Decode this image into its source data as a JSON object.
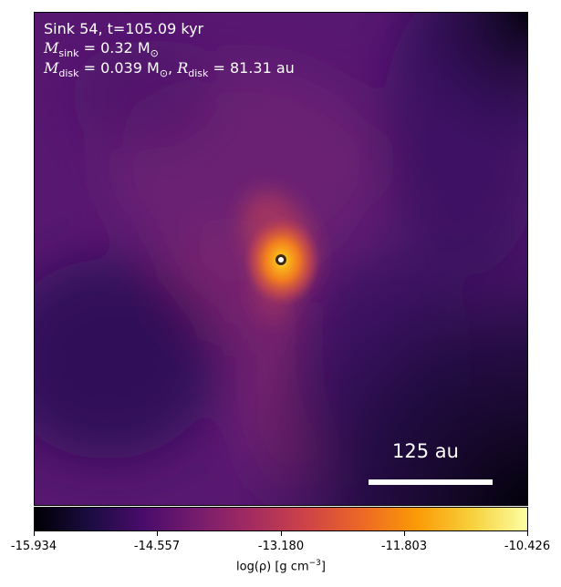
{
  "annotation": {
    "sink_line": "Sink 54, t=105.09 kyr",
    "msink_symbol": "M",
    "msink_sub": "sink",
    "msink_value": " = 0.32 M",
    "msink_unit_sub": "⊙",
    "mdisk_symbol": "M",
    "mdisk_sub": "disk",
    "mdisk_value": " = 0.039 M",
    "mdisk_unit_sub": "⊙",
    "rdisk_symbol": "R",
    "rdisk_sub": "disk",
    "rdisk_value": " = 81.31 au"
  },
  "scale_bar": {
    "label": "125 au"
  },
  "colorbar": {
    "colormap": "inferno",
    "ticks": [
      "-15.934",
      "-14.557",
      "-13.180",
      "-11.803",
      "-10.426"
    ],
    "min": -15.934,
    "max": -10.426,
    "label_main": "log(ρ) [g cm",
    "label_sup": "−3",
    "label_end": "]"
  },
  "colors": {
    "background_low": "#0a0614",
    "mid": "#6f1b6e",
    "high": "#f39a18",
    "peak": "#fcffa4"
  }
}
